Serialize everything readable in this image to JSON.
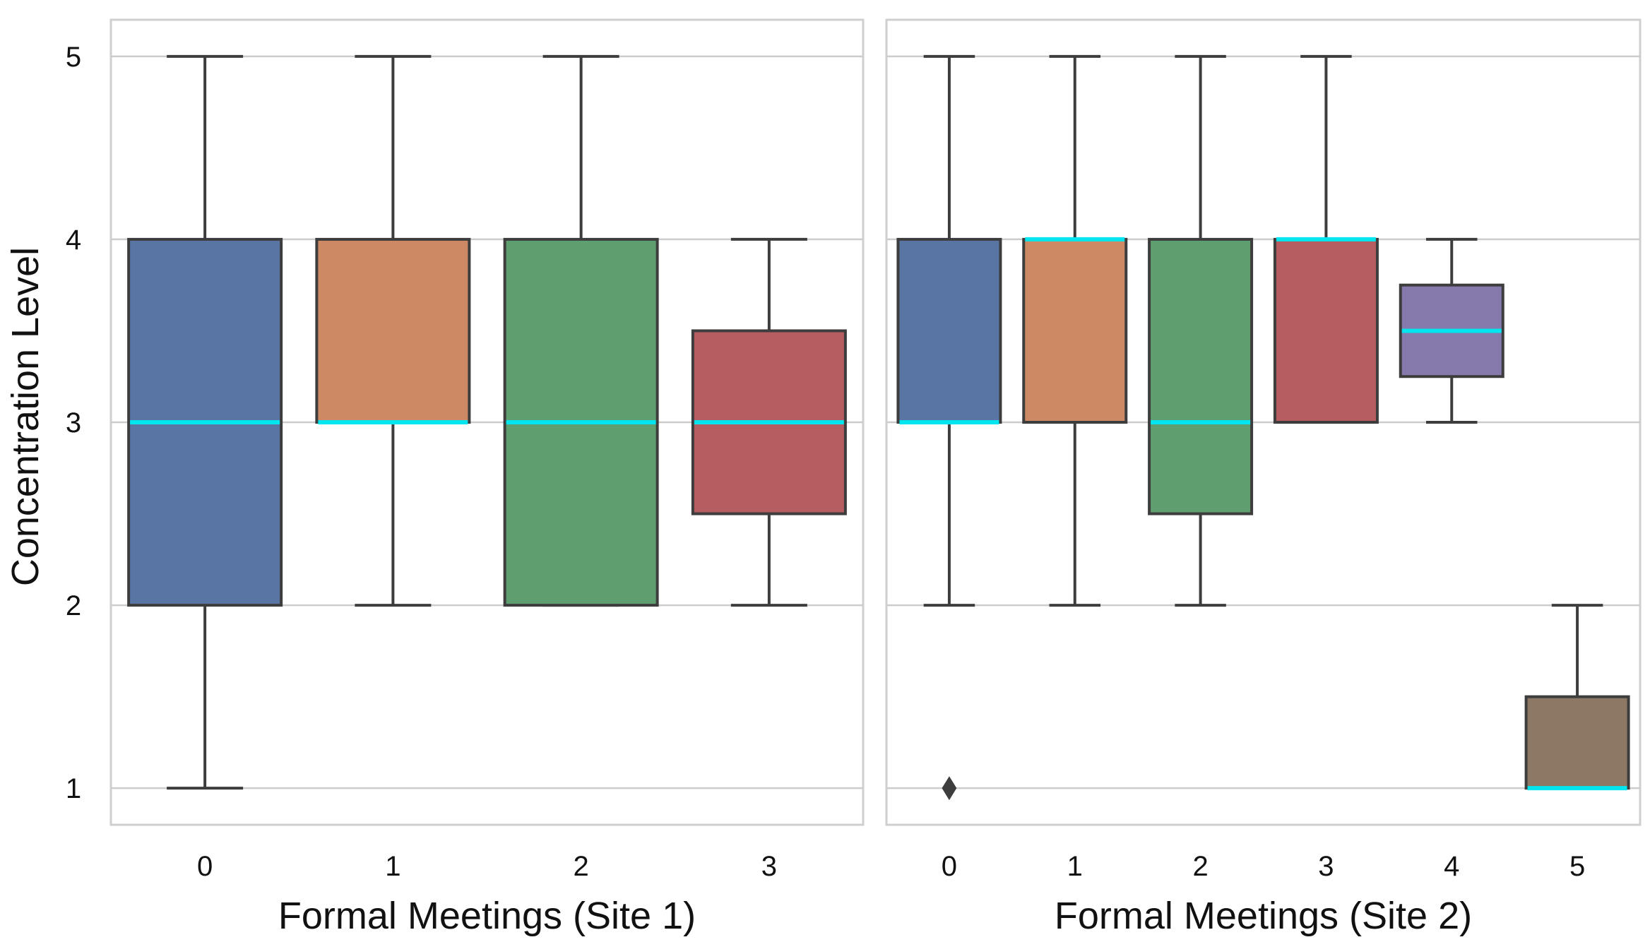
{
  "chart_data": {
    "type": "box",
    "ylabel": "Concentration Level",
    "ylim": [
      0.8,
      5.2
    ],
    "yticks": [
      1,
      2,
      3,
      4,
      5
    ],
    "grid": true,
    "median_color": "#00e5ee",
    "panels": [
      {
        "xlabel": "Formal Meetings (Site 1)",
        "categories": [
          "0",
          "1",
          "2",
          "3"
        ],
        "boxes": [
          {
            "category": "0",
            "whisker_low": 1,
            "q1": 2,
            "median": 3,
            "q3": 4,
            "whisker_high": 5,
            "color": "#5875a4",
            "outliers": []
          },
          {
            "category": "1",
            "whisker_low": 2,
            "q1": 3,
            "median": 3,
            "q3": 4,
            "whisker_high": 5,
            "color": "#cc8963",
            "outliers": []
          },
          {
            "category": "2",
            "whisker_low": 2,
            "q1": 2,
            "median": 3,
            "q3": 4,
            "whisker_high": 5,
            "color": "#5f9e6e",
            "outliers": []
          },
          {
            "category": "3",
            "whisker_low": 2,
            "q1": 2.5,
            "median": 3,
            "q3": 3.5,
            "whisker_high": 4,
            "color": "#b55d60",
            "outliers": []
          }
        ]
      },
      {
        "xlabel": "Formal Meetings (Site 2)",
        "categories": [
          "0",
          "1",
          "2",
          "3",
          "4",
          "5"
        ],
        "boxes": [
          {
            "category": "0",
            "whisker_low": 2,
            "q1": 3,
            "median": 3,
            "q3": 4,
            "whisker_high": 5,
            "color": "#5875a4",
            "outliers": [
              1
            ]
          },
          {
            "category": "1",
            "whisker_low": 2,
            "q1": 3,
            "median": 4,
            "q3": 4,
            "whisker_high": 5,
            "color": "#cc8963",
            "outliers": []
          },
          {
            "category": "2",
            "whisker_low": 2,
            "q1": 2.5,
            "median": 3,
            "q3": 4,
            "whisker_high": 5,
            "color": "#5f9e6e",
            "outliers": []
          },
          {
            "category": "3",
            "whisker_low": 3,
            "q1": 3,
            "median": 4,
            "q3": 4,
            "whisker_high": 5,
            "color": "#b55d60",
            "outliers": []
          },
          {
            "category": "4",
            "whisker_low": 3,
            "q1": 3.25,
            "median": 3.5,
            "q3": 3.75,
            "whisker_high": 4,
            "color": "#857aab",
            "outliers": []
          },
          {
            "category": "5",
            "whisker_low": 1,
            "q1": 1,
            "median": 1,
            "q3": 1.5,
            "whisker_high": 2,
            "color": "#8d7866",
            "outliers": []
          }
        ]
      }
    ]
  }
}
